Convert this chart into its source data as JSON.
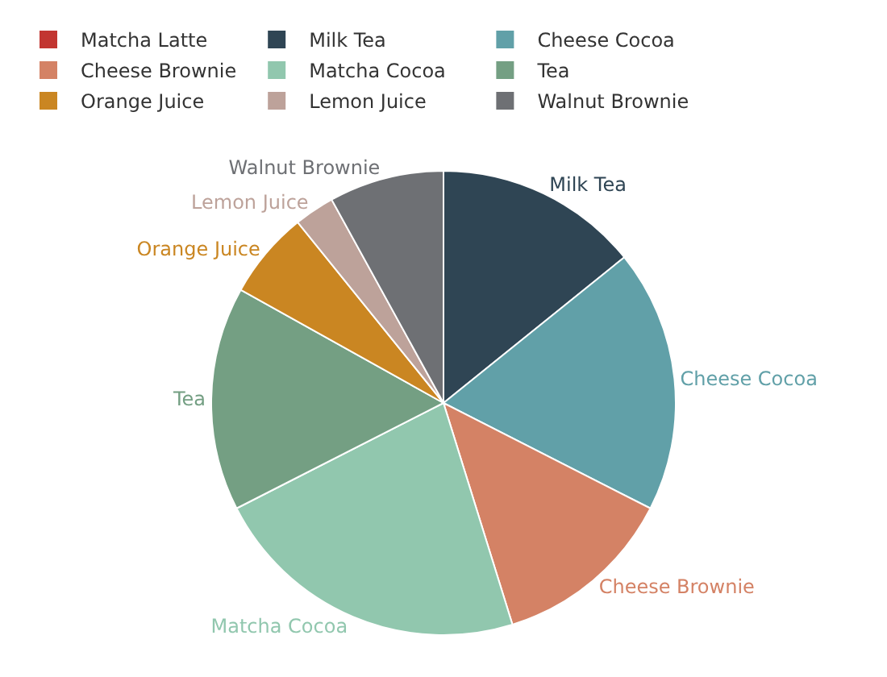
{
  "chart_data": {
    "type": "pie",
    "categories": [
      "Matcha Latte",
      "Milk Tea",
      "Cheese Cocoa",
      "Cheese Brownie",
      "Matcha Cocoa",
      "Tea",
      "Orange Juice",
      "Lemon Juice",
      "Walnut Brownie"
    ],
    "values": [
      0,
      14.2,
      18.3,
      12.7,
      22.3,
      15.6,
      6.1,
      2.8,
      8.0
    ],
    "colors": [
      "#c23531",
      "#2f4554",
      "#61a0a8",
      "#d48265",
      "#91c7ae",
      "#749f83",
      "#ca8622",
      "#bda29a",
      "#6e7074"
    ],
    "legend": "top"
  }
}
